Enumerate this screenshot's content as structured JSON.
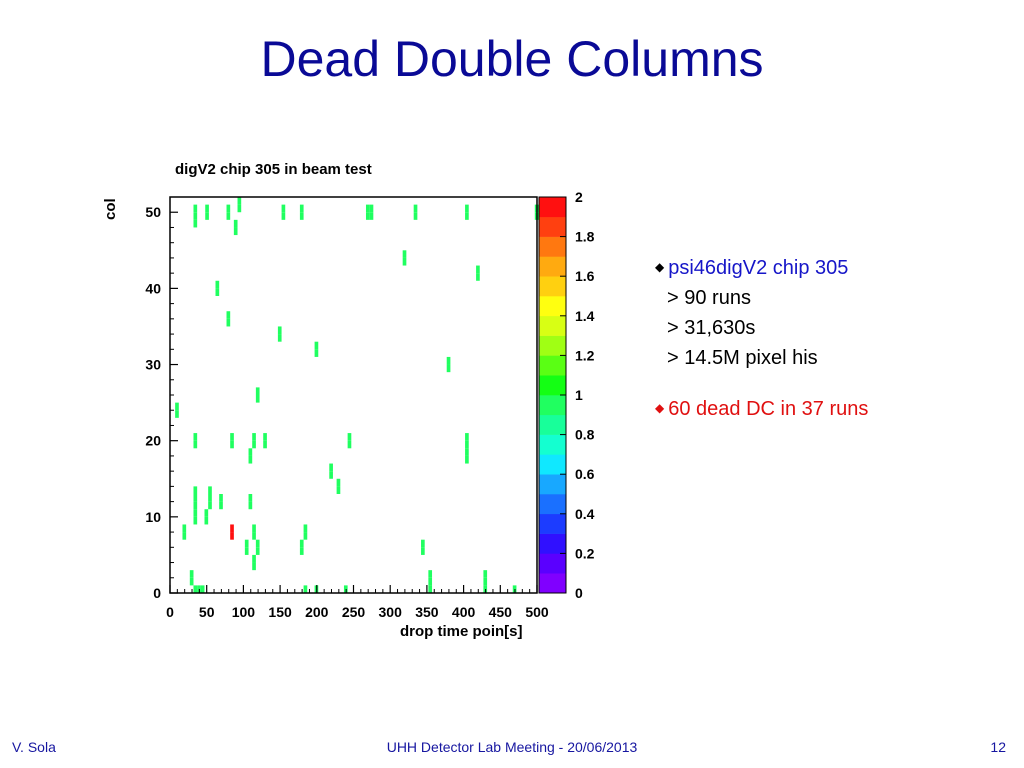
{
  "slide": {
    "title": "Dead Double Columns",
    "bullets": [
      {
        "text": "psi46digV2 chip 305",
        "sub": [
          "> 90 runs",
          "> 31,630s",
          "> 14.5M pixel his"
        ]
      },
      {
        "text": "60 dead DC in 37 runs"
      }
    ],
    "footer": {
      "left": "V. Sola",
      "center": "UHH Detector Lab Meeting - 20/06/2013",
      "right": "12"
    }
  },
  "colors": {
    "title": "#0a0a96",
    "bullet_blue": "#1616c8",
    "bullet_red": "#e01010"
  },
  "chart_data": {
    "type": "heatmap",
    "title": "digV2 chip 305 in beam test",
    "xlabel": "drop time poin[s]",
    "ylabel": "col",
    "xlim": [
      0,
      500
    ],
    "ylim": [
      0,
      52
    ],
    "xticks": [
      "0",
      "50",
      "100",
      "150",
      "200",
      "250",
      "300",
      "350",
      "400",
      "450",
      "500"
    ],
    "yticks": [
      "0",
      "10",
      "20",
      "30",
      "40",
      "50"
    ],
    "zlim": [
      0,
      2
    ],
    "zticks": [
      "0",
      "0.2",
      "0.4",
      "0.6",
      "0.8",
      "1",
      "1.2",
      "1.4",
      "1.6",
      "1.8",
      "2"
    ],
    "palette": [
      "#8000ff",
      "#5a00ff",
      "#3010ff",
      "#1c3cff",
      "#1a70ff",
      "#18a8ff",
      "#10e8ff",
      "#14ffd0",
      "#18ff9a",
      "#20ff60",
      "#14ff14",
      "#5aff14",
      "#a0ff14",
      "#d8ff14",
      "#ffff10",
      "#ffd010",
      "#ffaa10",
      "#ff7810",
      "#ff4010",
      "#ff1010"
    ],
    "cells": [
      [
        32,
        48,
        1
      ],
      [
        32,
        49,
        1
      ],
      [
        32,
        50,
        1
      ],
      [
        48,
        49,
        1
      ],
      [
        48,
        50,
        1
      ],
      [
        77,
        49,
        1
      ],
      [
        77,
        50,
        1
      ],
      [
        92,
        50,
        1
      ],
      [
        92,
        51,
        1
      ],
      [
        152,
        49,
        1
      ],
      [
        152,
        50,
        1
      ],
      [
        177,
        49,
        1
      ],
      [
        177,
        50,
        1
      ],
      [
        267,
        49,
        1
      ],
      [
        267,
        50,
        1
      ],
      [
        272,
        49,
        1
      ],
      [
        272,
        50,
        1
      ],
      [
        332,
        49,
        1
      ],
      [
        332,
        50,
        1
      ],
      [
        402,
        49,
        1
      ],
      [
        402,
        50,
        1
      ],
      [
        497,
        49,
        1
      ],
      [
        497,
        50,
        1
      ],
      [
        87,
        47,
        1
      ],
      [
        87,
        48,
        1
      ],
      [
        317,
        43,
        1
      ],
      [
        317,
        44,
        1
      ],
      [
        417,
        41,
        1
      ],
      [
        417,
        42,
        1
      ],
      [
        62,
        39,
        1
      ],
      [
        62,
        40,
        1
      ],
      [
        77,
        35,
        1
      ],
      [
        77,
        36,
        1
      ],
      [
        147,
        33,
        1
      ],
      [
        147,
        34,
        1
      ],
      [
        197,
        31,
        1
      ],
      [
        197,
        32,
        1
      ],
      [
        377,
        29,
        1
      ],
      [
        377,
        30,
        1
      ],
      [
        117,
        25,
        1
      ],
      [
        117,
        26,
        1
      ],
      [
        7,
        23,
        1
      ],
      [
        7,
        24,
        1
      ],
      [
        32,
        19,
        1
      ],
      [
        32,
        20,
        1
      ],
      [
        82,
        19,
        1
      ],
      [
        82,
        20,
        1
      ],
      [
        112,
        19,
        1
      ],
      [
        112,
        20,
        1
      ],
      [
        127,
        19,
        1
      ],
      [
        127,
        20,
        1
      ],
      [
        242,
        19,
        1
      ],
      [
        242,
        20,
        1
      ],
      [
        402,
        17,
        1
      ],
      [
        402,
        18,
        1
      ],
      [
        402,
        19,
        1
      ],
      [
        402,
        20,
        1
      ],
      [
        107,
        17,
        1
      ],
      [
        107,
        18,
        1
      ],
      [
        217,
        15,
        1
      ],
      [
        217,
        16,
        1
      ],
      [
        227,
        13,
        1
      ],
      [
        227,
        14,
        1
      ],
      [
        32,
        9,
        1
      ],
      [
        32,
        10,
        1
      ],
      [
        32,
        11,
        1
      ],
      [
        32,
        12,
        1
      ],
      [
        32,
        13,
        1
      ],
      [
        52,
        11,
        1
      ],
      [
        52,
        12,
        1
      ],
      [
        52,
        13,
        1
      ],
      [
        67,
        11,
        1
      ],
      [
        67,
        12,
        1
      ],
      [
        107,
        11,
        1
      ],
      [
        107,
        12,
        1
      ],
      [
        47,
        9,
        1
      ],
      [
        47,
        10,
        1
      ],
      [
        17,
        7,
        1
      ],
      [
        17,
        8,
        1
      ],
      [
        82,
        7,
        2
      ],
      [
        82,
        8,
        2
      ],
      [
        112,
        7,
        1
      ],
      [
        112,
        8,
        1
      ],
      [
        182,
        7,
        1
      ],
      [
        182,
        8,
        1
      ],
      [
        102,
        5,
        1
      ],
      [
        102,
        6,
        1
      ],
      [
        117,
        5,
        1
      ],
      [
        117,
        6,
        1
      ],
      [
        177,
        5,
        1
      ],
      [
        177,
        6,
        1
      ],
      [
        342,
        5,
        1
      ],
      [
        342,
        6,
        1
      ],
      [
        112,
        3,
        1
      ],
      [
        112,
        4,
        1
      ],
      [
        27,
        1,
        1
      ],
      [
        27,
        2,
        1
      ],
      [
        32,
        0,
        1
      ],
      [
        37,
        0,
        1
      ],
      [
        42,
        0,
        1
      ],
      [
        182,
        0,
        1
      ],
      [
        197,
        0,
        1
      ],
      [
        237,
        0,
        1
      ],
      [
        352,
        0,
        1
      ],
      [
        352,
        1,
        1
      ],
      [
        352,
        2,
        1
      ],
      [
        427,
        0,
        1
      ],
      [
        427,
        1,
        1
      ],
      [
        427,
        2,
        1
      ],
      [
        467,
        0,
        1
      ]
    ]
  }
}
